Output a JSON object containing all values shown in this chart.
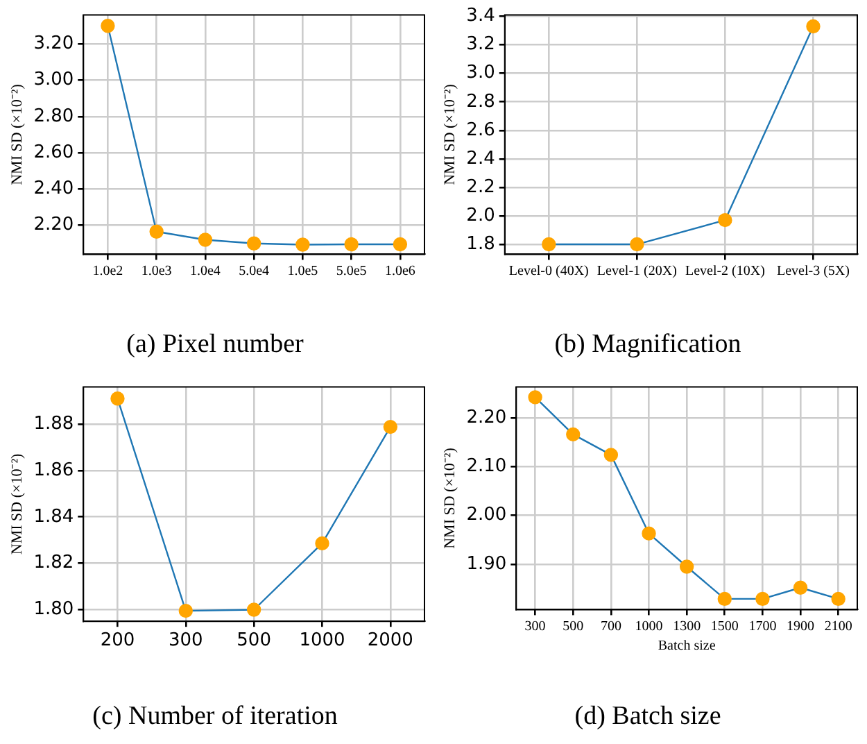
{
  "chart_data": [
    {
      "type": "line",
      "title": "(a) Pixel number",
      "ylabel": "NMI SD (×10⁻²)",
      "categories": [
        "1.0e2",
        "1.0e3",
        "1.0e4",
        "5.0e4",
        "1.0e5",
        "5.0e5",
        "1.0e6"
      ],
      "series": [
        {
          "color": "#1f77b4",
          "colors": [
            "#ffa500",
            "#ffa500",
            "#ffa500",
            "#ffa500",
            "#ffa500",
            "#ffa500",
            "#ffa500"
          ],
          "values": [
            3.3,
            2.165,
            2.12,
            2.1,
            2.093,
            2.095,
            2.095
          ]
        }
      ],
      "ylim": [
        2.04,
        3.36
      ],
      "yticks": [
        {
          "value": 2.2,
          "label": "2.20"
        },
        {
          "value": 2.4,
          "label": "2.40"
        },
        {
          "value": 2.6,
          "label": "2.60"
        },
        {
          "value": 2.8,
          "label": "2.80"
        },
        {
          "value": 3.0,
          "label": "3.00"
        },
        {
          "value": 3.2,
          "label": "3.20"
        }
      ],
      "grid": true,
      "marker": "circle",
      "legend": false
    },
    {
      "type": "line",
      "title": "(b) Magnification",
      "ylabel": "NMI SD (×10⁻²)",
      "categories": [
        "Level-0 (40X)",
        "Level-1 (20X)",
        "Level-2 (10X)",
        "Level-3 (5X)"
      ],
      "series": [
        {
          "color": "#1f77b4",
          "colors": [
            "#ffa500",
            "#ffa500",
            "#ffa500",
            "#ffa500"
          ],
          "values": [
            1.8,
            1.8,
            1.97,
            3.33
          ]
        }
      ],
      "ylim": [
        1.73,
        3.41
      ],
      "yticks": [
        {
          "value": 1.8,
          "label": "1.8"
        },
        {
          "value": 2.0,
          "label": "2.0"
        },
        {
          "value": 2.2,
          "label": "2.2"
        },
        {
          "value": 2.4,
          "label": "2.4"
        },
        {
          "value": 2.6,
          "label": "2.6"
        },
        {
          "value": 2.8,
          "label": "2.8"
        },
        {
          "value": 3.0,
          "label": "3.0"
        },
        {
          "value": 3.2,
          "label": "3.2"
        },
        {
          "value": 3.4,
          "label": "3.4"
        }
      ],
      "grid": true,
      "marker": "circle",
      "legend": false
    },
    {
      "type": "line",
      "title": "(c) Number of iteration",
      "ylabel": "NMI SD (×10⁻²)",
      "categories": [
        "200",
        "300",
        "500",
        "1000",
        "2000"
      ],
      "series": [
        {
          "color": "#1f77b4",
          "colors": [
            "#ffa500",
            "#ffa500",
            "#ffa500",
            "#ffa500",
            "#ffa500"
          ],
          "values": [
            1.891,
            1.7995,
            1.8,
            1.8286,
            1.8788
          ]
        }
      ],
      "ylim": [
        1.795,
        1.896
      ],
      "yticks": [
        {
          "value": 1.8,
          "label": "1.80"
        },
        {
          "value": 1.82,
          "label": "1.82"
        },
        {
          "value": 1.84,
          "label": "1.84"
        },
        {
          "value": 1.86,
          "label": "1.86"
        },
        {
          "value": 1.88,
          "label": "1.88"
        }
      ],
      "grid": true,
      "marker": "circle",
      "legend": false
    },
    {
      "type": "line",
      "title": "(d) Batch size",
      "xlabel": "Batch size",
      "ylabel": "NMI SD (×10⁻²)",
      "categories": [
        "300",
        "500",
        "700",
        "1000",
        "1300",
        "1500",
        "1700",
        "1900",
        "2100"
      ],
      "series": [
        {
          "color": "#1f77b4",
          "colors": [
            "#ffa500",
            "#ffa500",
            "#ffa500",
            "#ffa500",
            "#ffa500",
            "#ffa500",
            "#ffa500",
            "#ffa500",
            "#ffa500"
          ],
          "values": [
            2.242,
            2.166,
            2.124,
            1.963,
            1.895,
            1.829,
            1.829,
            1.852,
            1.829
          ]
        }
      ],
      "ylim": [
        1.807,
        2.263
      ],
      "yticks": [
        {
          "value": 1.9,
          "label": "1.90"
        },
        {
          "value": 2.0,
          "label": "2.00"
        },
        {
          "value": 2.1,
          "label": "2.10"
        },
        {
          "value": 2.2,
          "label": "2.20"
        }
      ],
      "grid": true,
      "marker": "circle",
      "legend": false
    }
  ]
}
